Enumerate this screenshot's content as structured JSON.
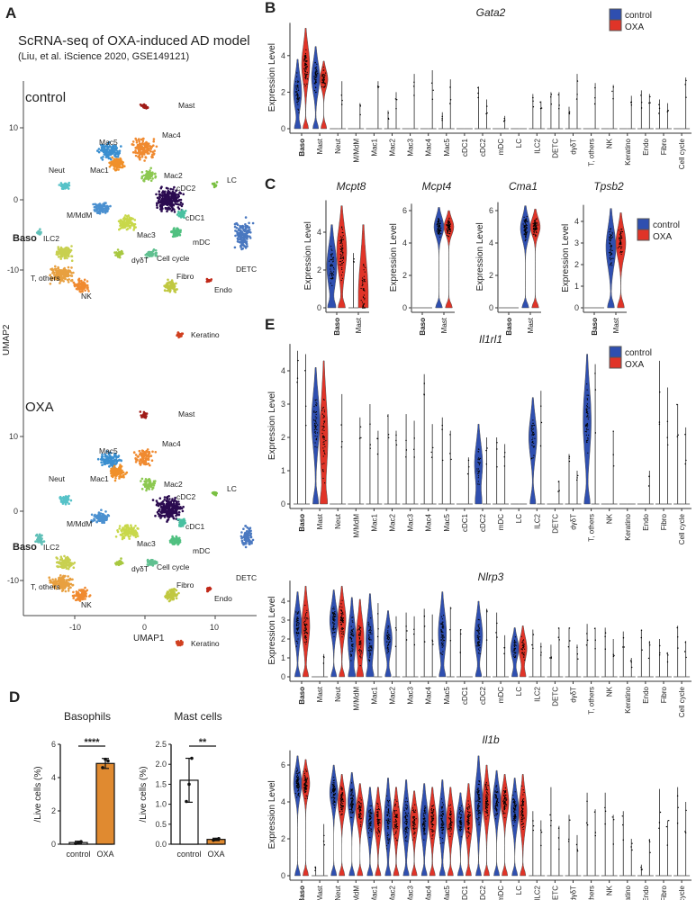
{
  "panel_labels": {
    "a": "A",
    "b": "B",
    "c": "C",
    "d": "D",
    "e": "E"
  },
  "colors": {
    "control": "#2f4fb0",
    "oxa": "#e03428",
    "bar_oxa": "#e08a30",
    "bar_control": "#ffffff"
  },
  "panel_a": {
    "title": "ScRNA-seq of OXA-induced AD model",
    "subtitle": "(Liu, et al. iScience 2020, GSE149121)",
    "xlabel": "UMAP1",
    "ylabel": "UMAP2",
    "xticks": [
      "-10",
      "0",
      "10"
    ],
    "yticks": [
      "10",
      "0",
      "-10"
    ],
    "conditions": [
      "control",
      "OXA"
    ],
    "clusters": [
      {
        "name": "Mast",
        "color": "#a01c18"
      },
      {
        "name": "Mac5",
        "color": "#3a8fd0"
      },
      {
        "name": "Mac4",
        "color": "#f08a30"
      },
      {
        "name": "Neut",
        "color": "#56c2c8"
      },
      {
        "name": "Mac1",
        "color": "#f0902a"
      },
      {
        "name": "Mac2",
        "color": "#8cc850"
      },
      {
        "name": "cDC2",
        "color": "#2b0b50"
      },
      {
        "name": "LC",
        "color": "#7ac043"
      },
      {
        "name": "M/MdM",
        "color": "#4a90d0"
      },
      {
        "name": "cDC1",
        "color": "#48c0a0"
      },
      {
        "name": "Baso",
        "color": "#60c0b8"
      },
      {
        "name": "ILC2",
        "color": "#c8d050"
      },
      {
        "name": "Mac3",
        "color": "#c8d84a"
      },
      {
        "name": "mDC",
        "color": "#50c080"
      },
      {
        "name": "Cell cycle",
        "color": "#60c090"
      },
      {
        "name": "dγδT",
        "color": "#a8c840"
      },
      {
        "name": "T, others",
        "color": "#e8a040"
      },
      {
        "name": "DETC",
        "color": "#4a78c0"
      },
      {
        "name": "Fibro",
        "color": "#c0c840"
      },
      {
        "name": "Endo",
        "color": "#c02818"
      },
      {
        "name": "NK",
        "color": "#f08a30"
      },
      {
        "name": "Keratino",
        "color": "#d04020"
      }
    ]
  },
  "legend": {
    "control": "control",
    "oxa": "OXA"
  },
  "categories": [
    "Baso",
    "Mast",
    "Neut",
    "M/MdM",
    "Mac1",
    "Mac2",
    "Mac3",
    "Mac4",
    "Mac5",
    "cDC1",
    "cDC2",
    "mDC",
    "LC",
    "ILC2",
    "DETC",
    "dγδT",
    "T, others",
    "NK",
    "Keratino",
    "Endo",
    "Fibro",
    "Cell cycle"
  ],
  "ylabel": "Expression Level",
  "chart_data": [
    {
      "id": "B",
      "type": "violin",
      "title": "Gata2",
      "ylabel": "Expression Level",
      "yticks": [
        0,
        2,
        4
      ],
      "ylim": [
        0,
        5.6
      ],
      "format": "[control_max, control_median, OXA_max, OXA_median] per category",
      "values": [
        [
          3.8,
          2.0,
          5.5,
          3.5
        ],
        [
          4.5,
          2.8,
          3.7,
          2.7
        ],
        [
          0,
          0,
          2.6,
          0
        ],
        [
          0,
          0,
          1.4,
          0
        ],
        [
          0,
          0,
          2.6,
          0
        ],
        [
          1.0,
          0,
          2.0,
          0
        ],
        [
          0,
          0,
          3.0,
          0
        ],
        [
          0,
          0,
          3.2,
          0
        ],
        [
          0.9,
          0,
          2.7,
          0
        ],
        [
          0,
          0,
          0,
          0
        ],
        [
          2.3,
          0,
          1.6,
          0
        ],
        [
          0,
          0,
          0.7,
          0
        ],
        [
          0,
          0,
          0,
          0
        ],
        [
          1.9,
          0,
          1.5,
          0
        ],
        [
          2.0,
          0,
          2.0,
          0
        ],
        [
          1.2,
          0,
          3.0,
          0
        ],
        [
          0,
          0,
          2.5,
          0
        ],
        [
          0,
          0,
          2.4,
          0
        ],
        [
          0,
          0,
          1.8,
          0
        ],
        [
          2.1,
          0,
          1.9,
          0
        ],
        [
          1.6,
          0,
          1.4,
          0
        ],
        [
          0,
          0,
          2.8,
          0
        ]
      ]
    },
    {
      "id": "C1",
      "type": "violin",
      "title": "Mcpt8",
      "categories": [
        "Baso",
        "Mast"
      ],
      "yticks": [
        0,
        2,
        4
      ],
      "ylim": [
        0,
        5.5
      ],
      "values": [
        [
          4.4,
          2.2,
          5.4,
          3.0
        ],
        [
          2.9,
          0,
          4.4,
          0.6
        ]
      ]
    },
    {
      "id": "C2",
      "type": "violin",
      "title": "Mcpt4",
      "categories": [
        "Baso",
        "Mast"
      ],
      "yticks": [
        0,
        2,
        4,
        6
      ],
      "ylim": [
        0,
        6.2
      ],
      "values": [
        [
          0,
          0,
          0,
          0
        ],
        [
          6.2,
          5.0,
          6.0,
          5.0
        ]
      ]
    },
    {
      "id": "C3",
      "type": "violin",
      "title": "Cma1",
      "categories": [
        "Baso",
        "Mast"
      ],
      "yticks": [
        0,
        2,
        4,
        6
      ],
      "ylim": [
        0,
        6.3
      ],
      "values": [
        [
          0,
          0,
          0,
          0
        ],
        [
          6.3,
          4.9,
          6.1,
          5.0
        ]
      ]
    },
    {
      "id": "C4",
      "type": "violin",
      "title": "Tpsb2",
      "categories": [
        "Baso",
        "Mast"
      ],
      "yticks": [
        0,
        1,
        2,
        3,
        4
      ],
      "ylim": [
        0,
        4.6
      ],
      "values": [
        [
          0,
          0,
          0,
          0
        ],
        [
          4.6,
          2.8,
          4.4,
          3.0
        ]
      ]
    },
    {
      "id": "E1",
      "type": "violin",
      "title": "Il1rl1",
      "yticks": [
        0,
        1,
        2,
        3,
        4
      ],
      "ylim": [
        0,
        4.7
      ],
      "values": [
        [
          4.6,
          0,
          4.5,
          0
        ],
        [
          4.1,
          2.5,
          4.3,
          2.0
        ],
        [
          0,
          0,
          3.3,
          0
        ],
        [
          0,
          0,
          2.6,
          0
        ],
        [
          3.0,
          0,
          2.2,
          0
        ],
        [
          2.7,
          0,
          2.2,
          0
        ],
        [
          2.7,
          0,
          2.5,
          0
        ],
        [
          3.9,
          0,
          2.4,
          0
        ],
        [
          2.6,
          0,
          2.2,
          0
        ],
        [
          0,
          0,
          1.4,
          0
        ],
        [
          2.4,
          1.2,
          2.0,
          0
        ],
        [
          2.0,
          0,
          1.8,
          0
        ],
        [
          0,
          0,
          0,
          0
        ],
        [
          3.2,
          2.0,
          3.4,
          0
        ],
        [
          0,
          0,
          0.7,
          0
        ],
        [
          1.5,
          0,
          1.0,
          0
        ],
        [
          4.5,
          2.5,
          4.2,
          0
        ],
        [
          0,
          0,
          2.2,
          0
        ],
        [
          0,
          0,
          0,
          0
        ],
        [
          0,
          0,
          1.0,
          0
        ],
        [
          4.3,
          0,
          3.5,
          0
        ],
        [
          3.0,
          0,
          2.3,
          0
        ]
      ]
    },
    {
      "id": "E2",
      "type": "violin",
      "title": "Nlrp3",
      "yticks": [
        0,
        1,
        2,
        3,
        4
      ],
      "ylim": [
        0,
        4.9
      ],
      "values": [
        [
          4.5,
          2.7,
          4.8,
          2.7
        ],
        [
          0,
          0,
          1.2,
          0
        ],
        [
          4.6,
          3.0,
          4.8,
          3.0
        ],
        [
          4.2,
          2.0,
          4.1,
          2.0
        ],
        [
          4.4,
          2.0,
          3.9,
          0
        ],
        [
          3.5,
          2.0,
          3.2,
          0
        ],
        [
          3.4,
          0,
          3.2,
          0
        ],
        [
          3.6,
          0,
          3.3,
          0
        ],
        [
          4.5,
          2.3,
          3.7,
          0
        ],
        [
          2.5,
          0,
          0,
          0
        ],
        [
          4.0,
          2.2,
          3.6,
          0
        ],
        [
          3.4,
          0,
          2.2,
          0
        ],
        [
          2.6,
          1.5,
          2.7,
          1.5
        ],
        [
          2.5,
          0,
          1.8,
          0
        ],
        [
          1.7,
          0,
          2.6,
          0
        ],
        [
          2.6,
          0,
          1.7,
          0
        ],
        [
          2.8,
          0,
          2.6,
          0
        ],
        [
          2.6,
          0,
          2.0,
          0
        ],
        [
          2.4,
          0,
          1.0,
          0
        ],
        [
          2.5,
          0,
          1.9,
          0
        ],
        [
          2.0,
          0,
          1.3,
          0
        ],
        [
          2.7,
          0,
          1.9,
          0
        ]
      ]
    },
    {
      "id": "E3",
      "type": "violin",
      "title": "Il1b",
      "yticks": [
        0,
        2,
        4,
        6
      ],
      "ylim": [
        0,
        6.6
      ],
      "values": [
        [
          6.5,
          5.0,
          6.3,
          5.0
        ],
        [
          0.5,
          0,
          2.8,
          0
        ],
        [
          6.0,
          4.5,
          5.5,
          4.0
        ],
        [
          5.6,
          4.0,
          5.0,
          3.5
        ],
        [
          4.8,
          3.0,
          4.8,
          3.0
        ],
        [
          5.3,
          3.0,
          4.8,
          3.0
        ],
        [
          5.2,
          3.0,
          4.6,
          3.0
        ],
        [
          5.0,
          3.0,
          4.8,
          3.0
        ],
        [
          5.2,
          3.0,
          4.8,
          3.0
        ],
        [
          4.5,
          3.0,
          5.0,
          3.0
        ],
        [
          6.5,
          4.0,
          6.0,
          4.0
        ],
        [
          5.7,
          4.0,
          5.5,
          4.0
        ],
        [
          5.3,
          3.5,
          5.5,
          3.5
        ],
        [
          3.5,
          0,
          3.0,
          0
        ],
        [
          4.8,
          0,
          2.7,
          0
        ],
        [
          3.3,
          0,
          2.2,
          0
        ],
        [
          4.5,
          0,
          3.6,
          0
        ],
        [
          4.5,
          0,
          3.3,
          0
        ],
        [
          3.5,
          0,
          2.0,
          0
        ],
        [
          0.6,
          0,
          2.0,
          0
        ],
        [
          4.7,
          0,
          3.0,
          0
        ],
        [
          4.8,
          0,
          4.0,
          0
        ]
      ]
    },
    {
      "id": "D1",
      "type": "bar",
      "title": "Basophils",
      "ylabel": "/Live cells (%)",
      "categories": [
        "control",
        "OXA"
      ],
      "values": [
        0.1,
        4.85
      ],
      "error": [
        0.08,
        0.3
      ],
      "points": [
        [
          0.05,
          0.1,
          0.15
        ],
        [
          4.6,
          5.1,
          5.0
        ]
      ],
      "yticks": [
        "0",
        "2",
        "4",
        "6"
      ],
      "ylim": [
        0,
        6
      ],
      "significance": "****"
    },
    {
      "id": "D2",
      "type": "bar",
      "title": "Mast cells",
      "ylabel": "/Live cells (%)",
      "categories": [
        "control",
        "OXA"
      ],
      "values": [
        1.6,
        0.12
      ],
      "error": [
        0.55,
        0.03
      ],
      "points": [
        [
          1.07,
          1.5,
          2.15
        ],
        [
          0.1,
          0.12,
          0.14
        ]
      ],
      "yticks": [
        "0.0",
        "0.5",
        "1.0",
        "1.5",
        "2.0",
        "2.5"
      ],
      "ylim": [
        0,
        2.5
      ],
      "significance": "**"
    }
  ]
}
